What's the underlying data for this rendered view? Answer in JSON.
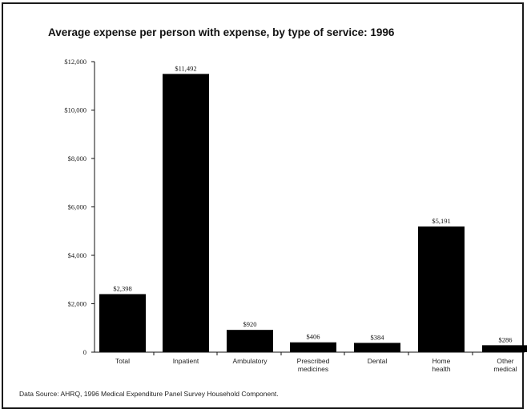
{
  "chart_data": {
    "type": "bar",
    "title": "Average expense per person with expense, by type of service: 1996",
    "categories": [
      [
        "Total"
      ],
      [
        "Inpatient"
      ],
      [
        "Ambulatory"
      ],
      [
        "Prescribed",
        "medicines"
      ],
      [
        "Dental"
      ],
      [
        "Home",
        "health"
      ],
      [
        "Other",
        "medical"
      ]
    ],
    "values": [
      2398,
      11492,
      920,
      406,
      384,
      5191,
      286
    ],
    "data_labels": [
      "$2,398",
      "$11,492",
      "$920",
      "$406",
      "$384",
      "$5,191",
      "$286"
    ],
    "y_ticks": [
      {
        "value": 0,
        "label": "0"
      },
      {
        "value": 2000,
        "label": "$2,000"
      },
      {
        "value": 4000,
        "label": "$4,000"
      },
      {
        "value": 6000,
        "label": "$6,000"
      },
      {
        "value": 8000,
        "label": "$8,000"
      },
      {
        "value": 10000,
        "label": "$10,000"
      },
      {
        "value": 12000,
        "label": "$12,000"
      }
    ],
    "ylim": [
      0,
      12000
    ],
    "xlabel": "",
    "ylabel": "",
    "grid": false,
    "bar_color": "#000000"
  },
  "source_text": "Data Source: AHRQ, 1996 Medical Expenditure Panel Survey Household Component."
}
